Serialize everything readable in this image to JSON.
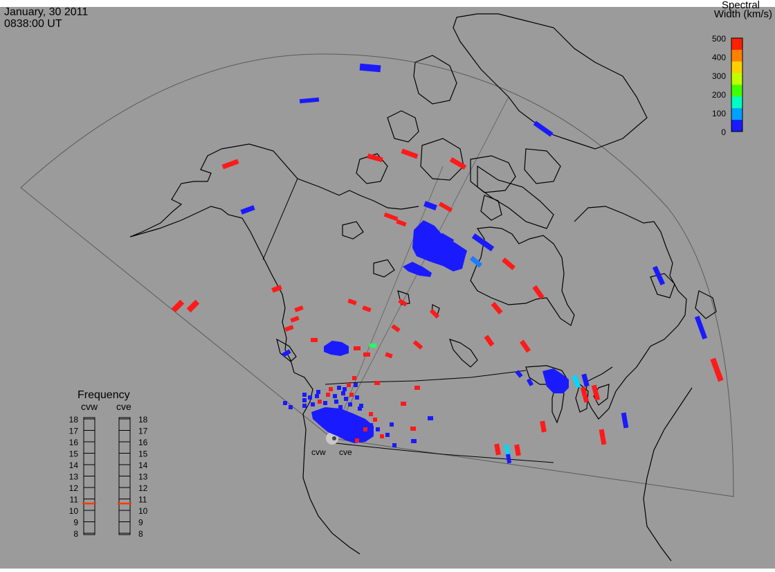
{
  "header": {
    "date": "January, 30 2011",
    "time": "0838:00 UT"
  },
  "colorbar": {
    "title_line1": "Spectral",
    "title_line2": "Width (km/s)",
    "ticks": [
      "500",
      "400",
      "300",
      "200",
      "100",
      "0"
    ],
    "colors": [
      "#1a1aff",
      "#00a0ff",
      "#00ffc0",
      "#40ff00",
      "#c0ff00",
      "#ffd000",
      "#ff8000",
      "#ff2000"
    ]
  },
  "frequency_panel": {
    "title": "Frequency",
    "radars": [
      "cvw",
      "cve"
    ],
    "ticks": [
      "18",
      "17",
      "16",
      "15",
      "14",
      "13",
      "12",
      "11",
      "10",
      "9",
      "8"
    ],
    "cvw_value_mhz": 10.6,
    "cve_value_mhz": 10.6,
    "marker_color": "#ff3a00"
  },
  "sites": {
    "west_label": "cvw",
    "east_label": "cve"
  },
  "colors": {
    "background": "#9b9b9b",
    "coast": "#000000",
    "fov": "#5a5a5a",
    "scatter_blue": "#1a1aff",
    "scatter_red": "#ff1a1a",
    "scatter_cyan": "#00d8ff",
    "scatter_teal": "#1e7bff",
    "scatter_green": "#20ff60"
  }
}
